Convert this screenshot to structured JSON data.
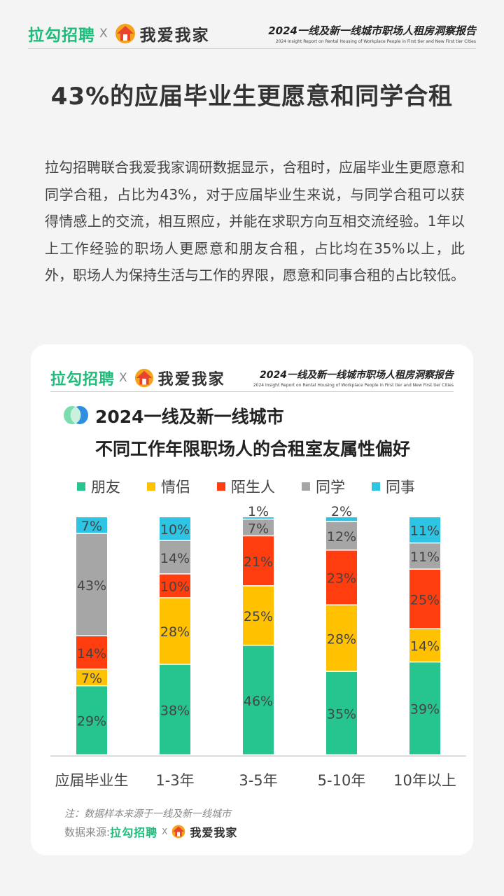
{
  "header": {
    "brand_left": "拉勾招聘",
    "brand_sep": "X",
    "brand_right": "我爱我家",
    "report_title": "2024一线及新一线城市职场人租房洞察报告",
    "report_subtitle": "2024 Insight Report on Rental Housing of Workplace People in First tier and New First tier Cities"
  },
  "page_title": "43%的应届毕业生更愿意和同学合租",
  "body_text": "拉勾招聘联合我爱我家调研数据显示，合租时，应届毕业生更愿意和同学合租，占比为43%，对于应届毕业生来说，与同学合租可以获得情感上的交流，相互照应，并能在求职方向互相交流经验。1年以上工作经验的职场人更愿意和朋友合租，占比均在35%以上，此外，职场人为保持生活与工作的界限，愿意和同事合租的占比较低。",
  "card": {
    "brand_left": "拉勾招聘",
    "brand_sep": "X",
    "brand_right": "我爱我家",
    "report_title": "2024一线及新一线城市职场人租房洞察报告",
    "report_subtitle": "2024 Insight Report on Rental Housing of Workplace People in First tier and New First tier Cities",
    "note": "注：数据样本来源于一线及新一线城市",
    "source_label": "数据来源:",
    "source_brand_left": "拉勾招聘",
    "source_sep": "X",
    "source_brand_right": "我爱我家"
  },
  "colors": {
    "brand_green": "#1fbb7a",
    "house_orange": "#f7a21b",
    "house_red": "#e8432e"
  },
  "chart_data": {
    "type": "bar",
    "stacked": true,
    "title": "2024一线及新一线城市",
    "subtitle": "不同工作年限职场人的合租室友属性偏好",
    "categories": [
      "应届毕业生",
      "1-3年",
      "3-5年",
      "5-10年",
      "10年以上"
    ],
    "legend_position": "top",
    "series": [
      {
        "name": "朋友",
        "color": "#26c48e",
        "values": [
          29,
          38,
          46,
          35,
          39
        ]
      },
      {
        "name": "情侣",
        "color": "#ffc100",
        "values": [
          7,
          28,
          25,
          28,
          14
        ]
      },
      {
        "name": "陌生人",
        "color": "#ff3d0f",
        "values": [
          14,
          10,
          21,
          23,
          25
        ]
      },
      {
        "name": "同学",
        "color": "#a6a6a6",
        "values": [
          43,
          14,
          7,
          12,
          11
        ]
      },
      {
        "name": "同事",
        "color": "#2ec4e4",
        "values": [
          7,
          10,
          1,
          2,
          11
        ]
      }
    ],
    "value_suffix": "%",
    "ylim": [
      0,
      100
    ],
    "grid": false
  }
}
